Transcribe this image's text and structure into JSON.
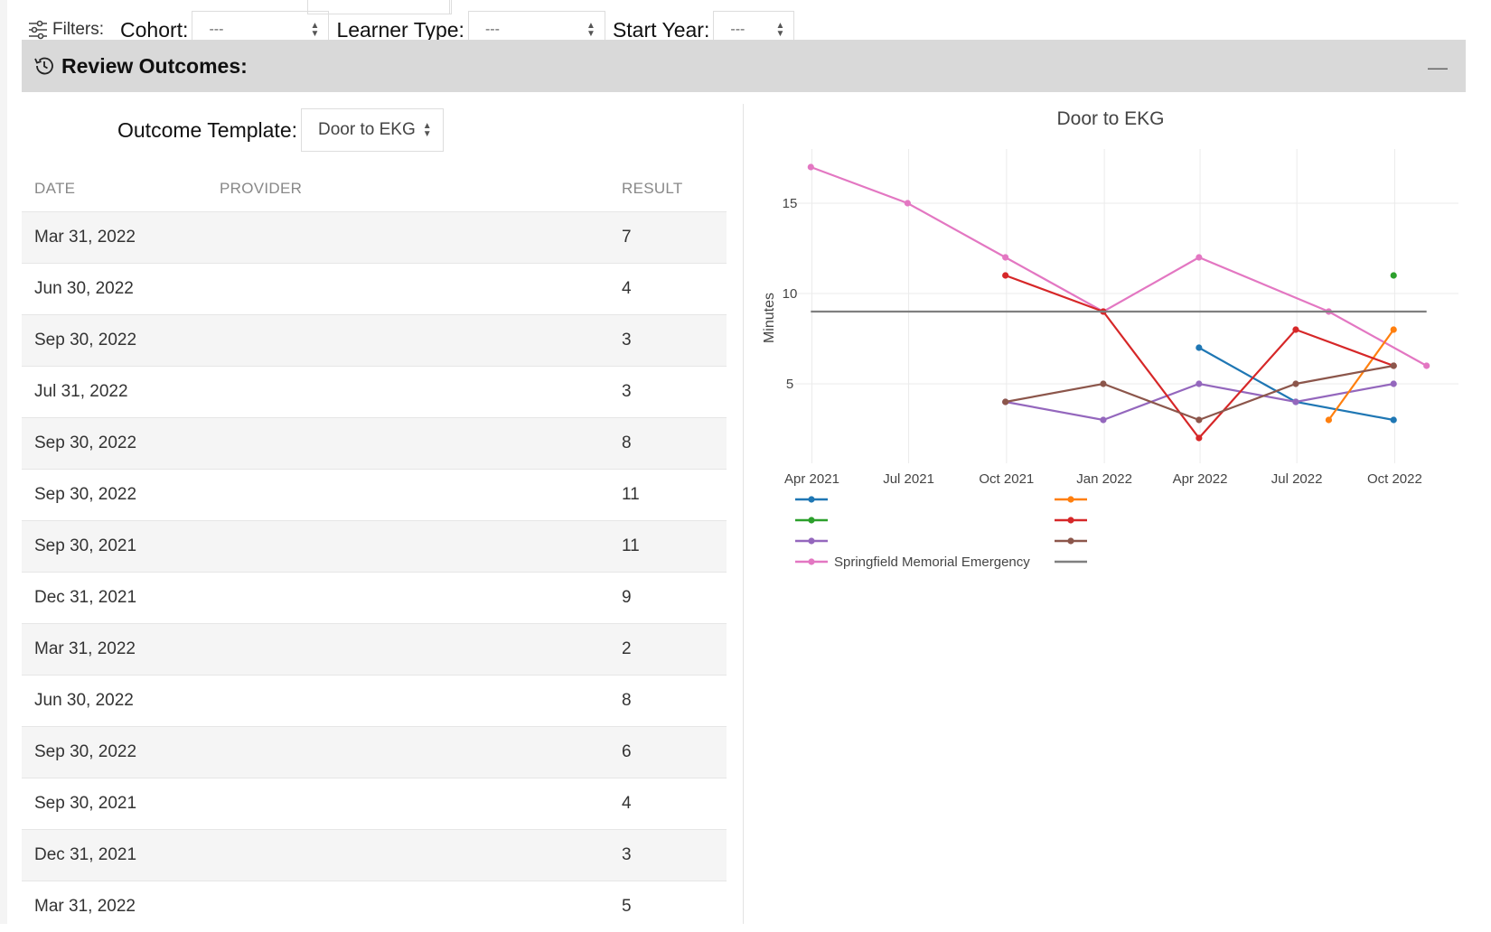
{
  "filters": {
    "label": "Filters:",
    "cohort": {
      "label": "Cohort:",
      "value": "---"
    },
    "learner_type": {
      "label": "Learner Type:",
      "value": "---"
    },
    "start_year": {
      "label": "Start Year:",
      "value": "---"
    }
  },
  "section": {
    "title": "Review Outcomes:",
    "collapse_label": "—"
  },
  "template": {
    "label": "Outcome Template:",
    "value": "Door to EKG"
  },
  "table": {
    "headers": [
      "DATE",
      "PROVIDER",
      "RESULT"
    ],
    "rows": [
      {
        "date": "Mar 31, 2022",
        "result": "7"
      },
      {
        "date": "Jun 30, 2022",
        "result": "4"
      },
      {
        "date": "Sep 30, 2022",
        "result": "3"
      },
      {
        "date": "Jul 31, 2022",
        "result": "3"
      },
      {
        "date": "Sep 30, 2022",
        "result": "8"
      },
      {
        "date": "Sep 30, 2022",
        "result": "11"
      },
      {
        "date": "Sep 30, 2021",
        "result": "11"
      },
      {
        "date": "Dec 31, 2021",
        "result": "9"
      },
      {
        "date": "Mar 31, 2022",
        "result": "2"
      },
      {
        "date": "Jun 30, 2022",
        "result": "8"
      },
      {
        "date": "Sep 30, 2022",
        "result": "6"
      },
      {
        "date": "Sep 30, 2021",
        "result": "4"
      },
      {
        "date": "Dec 31, 2021",
        "result": "3"
      },
      {
        "date": "Mar 31, 2022",
        "result": "5"
      }
    ]
  },
  "chart_data": {
    "type": "line",
    "title": "Door to EKG",
    "xlabel": "",
    "ylabel": "Minutes",
    "xlim": [
      "2021-03-01",
      "2022-11-30"
    ],
    "ylim": [
      1,
      18
    ],
    "xticks": [
      {
        "date": "2021-04-01",
        "label": "Apr 2021"
      },
      {
        "date": "2021-07-01",
        "label": "Jul 2021"
      },
      {
        "date": "2021-10-01",
        "label": "Oct 2021"
      },
      {
        "date": "2022-01-01",
        "label": "Jan 2022"
      },
      {
        "date": "2022-04-01",
        "label": "Apr 2022"
      },
      {
        "date": "2022-07-01",
        "label": "Jul 2022"
      },
      {
        "date": "2022-10-01",
        "label": "Oct 2022"
      }
    ],
    "yticks": [
      5,
      10,
      15
    ],
    "grid": true,
    "legend_position": "bottom",
    "series": [
      {
        "name": "",
        "color": "#1f77b4",
        "points": [
          [
            "2022-03-31",
            7
          ],
          [
            "2022-06-30",
            4
          ],
          [
            "2022-09-30",
            3
          ]
        ]
      },
      {
        "name": "",
        "color": "#2ca02c",
        "points": [
          [
            "2022-09-30",
            11
          ]
        ]
      },
      {
        "name": "",
        "color": "#9467bd",
        "points": [
          [
            "2021-09-30",
            4
          ],
          [
            "2021-12-31",
            3
          ],
          [
            "2022-03-31",
            5
          ],
          [
            "2022-06-30",
            4
          ],
          [
            "2022-09-30",
            5
          ]
        ]
      },
      {
        "name": "Springfield Memorial Emergency",
        "color": "#e377c2",
        "points": [
          [
            "2021-03-31",
            17
          ],
          [
            "2021-06-30",
            15
          ],
          [
            "2021-09-30",
            12
          ],
          [
            "2021-12-31",
            9
          ],
          [
            "2022-03-31",
            12
          ],
          [
            "2022-07-31",
            9
          ],
          [
            "2022-10-31",
            6
          ]
        ]
      },
      {
        "name": "",
        "color": "#ff7f0e",
        "points": [
          [
            "2022-07-31",
            3
          ],
          [
            "2022-09-30",
            8
          ]
        ]
      },
      {
        "name": "",
        "color": "#d62728",
        "points": [
          [
            "2021-09-30",
            11
          ],
          [
            "2021-12-31",
            9
          ],
          [
            "2022-03-31",
            2
          ],
          [
            "2022-06-30",
            8
          ],
          [
            "2022-09-30",
            6
          ]
        ]
      },
      {
        "name": "",
        "color": "#8c564b",
        "points": [
          [
            "2021-09-30",
            4
          ],
          [
            "2021-12-31",
            5
          ],
          [
            "2022-03-31",
            3
          ],
          [
            "2022-06-30",
            5
          ],
          [
            "2022-09-30",
            6
          ]
        ]
      },
      {
        "name": "",
        "color": "#7f7f7f",
        "markers": false,
        "points": [
          [
            "2021-03-31",
            9
          ],
          [
            "2022-10-31",
            9
          ]
        ]
      }
    ]
  }
}
